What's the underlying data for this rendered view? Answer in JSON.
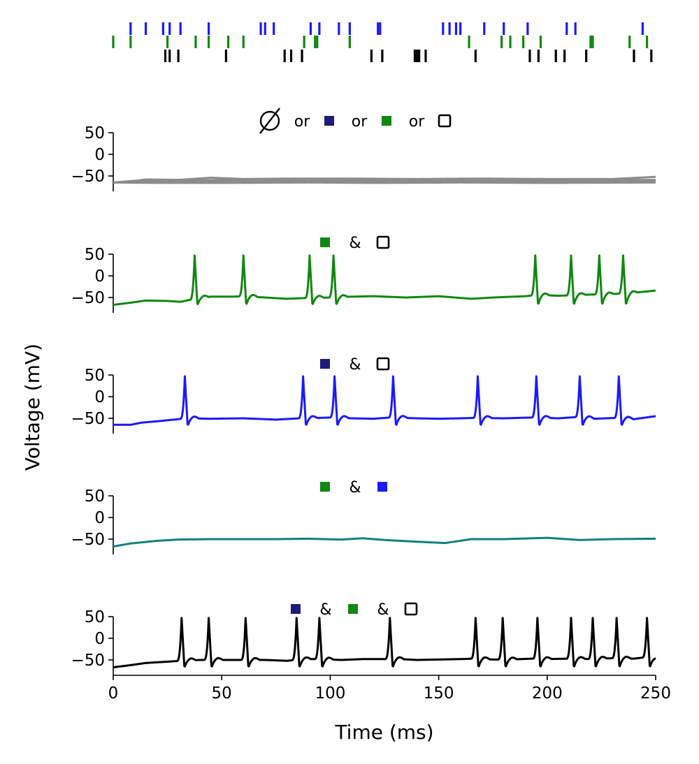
{
  "figure": {
    "ylabel": "Voltage (mV)",
    "xlabel": "Time (ms)"
  },
  "chart_data": [
    {
      "type": "raster",
      "x_range": [
        0,
        250
      ],
      "rows": [
        {
          "color": "#1a1aff",
          "spike_times": [
            8,
            15,
            23,
            26,
            31,
            44,
            68,
            70,
            74,
            91,
            95,
            104,
            109,
            122,
            123,
            152,
            155,
            158,
            160,
            171,
            180,
            191,
            209,
            213,
            244
          ]
        },
        {
          "color": "#118811",
          "spike_times": [
            0,
            8,
            25,
            38,
            44,
            53,
            60,
            88,
            93,
            94,
            109,
            164,
            179,
            183,
            189,
            197,
            220,
            221,
            238,
            246
          ]
        },
        {
          "color": "#000000",
          "spike_times": [
            24,
            26,
            30,
            52,
            79,
            82,
            87,
            119,
            124,
            139,
            140,
            141,
            144,
            167,
            192,
            196,
            204,
            208,
            218,
            240,
            248
          ]
        }
      ]
    },
    {
      "type": "line",
      "legend": {
        "items": [
          {
            "kind": "null-set",
            "glyph": "∅"
          },
          {
            "kind": "sep",
            "text": "or"
          },
          {
            "kind": "filled",
            "color": "#1c1c7a"
          },
          {
            "kind": "sep",
            "text": "or"
          },
          {
            "kind": "filled",
            "color": "#118811"
          },
          {
            "kind": "sep",
            "text": "or"
          },
          {
            "kind": "open"
          }
        ]
      },
      "ylim": [
        -80,
        50
      ],
      "yticks": [
        "50",
        "0",
        "−50"
      ],
      "series": [
        {
          "color": "#8c8c8c",
          "baseline": [
            [
              0,
              -65
            ],
            [
              8,
              -63
            ],
            [
              15,
              -58
            ],
            [
              30,
              -59
            ],
            [
              45,
              -54
            ],
            [
              60,
              -57
            ],
            [
              80,
              -56
            ],
            [
              110,
              -56
            ],
            [
              140,
              -57
            ],
            [
              170,
              -56
            ],
            [
              200,
              -57
            ],
            [
              230,
              -57
            ],
            [
              250,
              -52
            ]
          ],
          "spikes": []
        },
        {
          "color": "#8c8c8c",
          "baseline": [
            [
              0,
              -65
            ],
            [
              10,
              -61
            ],
            [
              25,
              -60
            ],
            [
              40,
              -60
            ],
            [
              65,
              -58
            ],
            [
              90,
              -61
            ],
            [
              120,
              -58
            ],
            [
              150,
              -61
            ],
            [
              180,
              -59
            ],
            [
              210,
              -59
            ],
            [
              250,
              -59
            ]
          ],
          "spikes": []
        },
        {
          "color": "#8c8c8c",
          "baseline": [
            [
              0,
              -65
            ],
            [
              12,
              -64
            ],
            [
              30,
              -64
            ],
            [
              60,
              -63
            ],
            [
              100,
              -64
            ],
            [
              130,
              -62
            ],
            [
              160,
              -64
            ],
            [
              200,
              -63
            ],
            [
              250,
              -62
            ]
          ],
          "spikes": []
        },
        {
          "color": "#8c8c8c",
          "baseline": [
            [
              0,
              -65
            ],
            [
              20,
              -66
            ],
            [
              50,
              -66
            ],
            [
              90,
              -65
            ],
            [
              120,
              -66
            ],
            [
              160,
              -65
            ],
            [
              200,
              -66
            ],
            [
              250,
              -65
            ]
          ],
          "spikes": []
        }
      ]
    },
    {
      "type": "line",
      "legend": {
        "items": [
          {
            "kind": "filled",
            "color": "#118811"
          },
          {
            "kind": "sep",
            "text": "&"
          },
          {
            "kind": "open"
          }
        ]
      },
      "ylim": [
        -80,
        50
      ],
      "yticks": [
        "50",
        "0",
        "−50"
      ],
      "series": [
        {
          "color": "#118811",
          "baseline": [
            [
              0,
              -67
            ],
            [
              8,
              -62
            ],
            [
              15,
              -57
            ],
            [
              25,
              -58
            ],
            [
              31,
              -60
            ],
            [
              37,
              -54
            ],
            [
              45,
              -48
            ],
            [
              55,
              -48
            ],
            [
              60,
              -47
            ],
            [
              70,
              -50
            ],
            [
              80,
              -53
            ],
            [
              90,
              -51
            ],
            [
              101,
              -50
            ],
            [
              110,
              -48
            ],
            [
              120,
              -47
            ],
            [
              135,
              -50
            ],
            [
              150,
              -47
            ],
            [
              165,
              -53
            ],
            [
              175,
              -50
            ],
            [
              190,
              -47
            ],
            [
              196,
              -44
            ],
            [
              205,
              -46
            ],
            [
              215,
              -44
            ],
            [
              222,
              -43
            ],
            [
              230,
              -42
            ],
            [
              238,
              -40
            ],
            [
              250,
              -34
            ]
          ],
          "spikes": [
            37.5,
            60,
            90.5,
            101.5,
            194.5,
            211,
            224,
            235
          ]
        }
      ]
    },
    {
      "type": "line",
      "legend": {
        "items": [
          {
            "kind": "filled",
            "color": "#1c1c7a"
          },
          {
            "kind": "sep",
            "text": "&"
          },
          {
            "kind": "open"
          }
        ]
      },
      "ylim": [
        -80,
        50
      ],
      "yticks": [
        "50",
        "0",
        "−50"
      ],
      "series": [
        {
          "color": "#1a1aff",
          "baseline": [
            [
              0,
              -65
            ],
            [
              8,
              -65
            ],
            [
              13,
              -60
            ],
            [
              22,
              -56
            ],
            [
              30,
              -52
            ],
            [
              33,
              -50
            ],
            [
              45,
              -51
            ],
            [
              60,
              -50
            ],
            [
              75,
              -53
            ],
            [
              86,
              -50
            ],
            [
              95,
              -49
            ],
            [
              101,
              -48
            ],
            [
              110,
              -50
            ],
            [
              120,
              -51
            ],
            [
              128,
              -48
            ],
            [
              140,
              -50
            ],
            [
              150,
              -51
            ],
            [
              160,
              -50
            ],
            [
              167,
              -49
            ],
            [
              180,
              -50
            ],
            [
              194,
              -48
            ],
            [
              205,
              -50
            ],
            [
              214,
              -47
            ],
            [
              222,
              -51
            ],
            [
              232,
              -49
            ],
            [
              240,
              -52
            ],
            [
              250,
              -45
            ]
          ],
          "spikes": [
            33,
            87.5,
            102,
            129,
            168,
            195,
            215,
            233
          ]
        }
      ]
    },
    {
      "type": "line",
      "legend": {
        "items": [
          {
            "kind": "filled",
            "color": "#118811"
          },
          {
            "kind": "sep",
            "text": "&"
          },
          {
            "kind": "filled",
            "color": "#1a1aff"
          }
        ]
      },
      "ylim": [
        -80,
        50
      ],
      "yticks": [
        "50",
        "0",
        "−50"
      ],
      "series": [
        {
          "color": "#12807e",
          "baseline": [
            [
              0,
              -67
            ],
            [
              8,
              -60
            ],
            [
              20,
              -54
            ],
            [
              30,
              -51
            ],
            [
              45,
              -50
            ],
            [
              60,
              -50
            ],
            [
              75,
              -50
            ],
            [
              90,
              -49
            ],
            [
              105,
              -51
            ],
            [
              115,
              -48
            ],
            [
              125,
              -52
            ],
            [
              140,
              -56
            ],
            [
              153,
              -59
            ],
            [
              165,
              -50
            ],
            [
              180,
              -50
            ],
            [
              200,
              -47
            ],
            [
              215,
              -52
            ],
            [
              230,
              -50
            ],
            [
              250,
              -49
            ]
          ],
          "spikes": []
        }
      ]
    },
    {
      "type": "line",
      "legend": {
        "items": [
          {
            "kind": "filled",
            "color": "#1c1c7a"
          },
          {
            "kind": "sep",
            "text": "&"
          },
          {
            "kind": "filled",
            "color": "#118811"
          },
          {
            "kind": "sep",
            "text": "&"
          },
          {
            "kind": "open"
          }
        ]
      },
      "ylim": [
        -80,
        50
      ],
      "yticks": [
        "50",
        "0",
        "−50"
      ],
      "xlim": [
        0,
        250
      ],
      "xticks": [
        "0",
        "50",
        "100",
        "150",
        "200",
        "250"
      ],
      "series": [
        {
          "color": "#000000",
          "baseline": [
            [
              0,
              -67
            ],
            [
              8,
              -62
            ],
            [
              15,
              -57
            ],
            [
              25,
              -54
            ],
            [
              31,
              -52
            ],
            [
              40,
              -50
            ],
            [
              50,
              -50
            ],
            [
              60,
              -50
            ],
            [
              70,
              -50
            ],
            [
              80,
              -52
            ],
            [
              84,
              -50
            ],
            [
              90,
              -48
            ],
            [
              94,
              -48
            ],
            [
              105,
              -50
            ],
            [
              115,
              -48
            ],
            [
              125,
              -48
            ],
            [
              128,
              -47
            ],
            [
              140,
              -50
            ],
            [
              150,
              -49
            ],
            [
              160,
              -48
            ],
            [
              166,
              -47
            ],
            [
              175,
              -49
            ],
            [
              183,
              -49
            ],
            [
              193,
              -47
            ],
            [
              200,
              -48
            ],
            [
              210,
              -47
            ],
            [
              220,
              -48
            ],
            [
              230,
              -46
            ],
            [
              240,
              -47
            ],
            [
              245,
              -44
            ],
            [
              250,
              -50
            ]
          ],
          "spikes": [
            31.5,
            44,
            61,
            84.5,
            95,
            127.5,
            167,
            179.5,
            195.5,
            211,
            221,
            232,
            246
          ]
        }
      ]
    }
  ]
}
